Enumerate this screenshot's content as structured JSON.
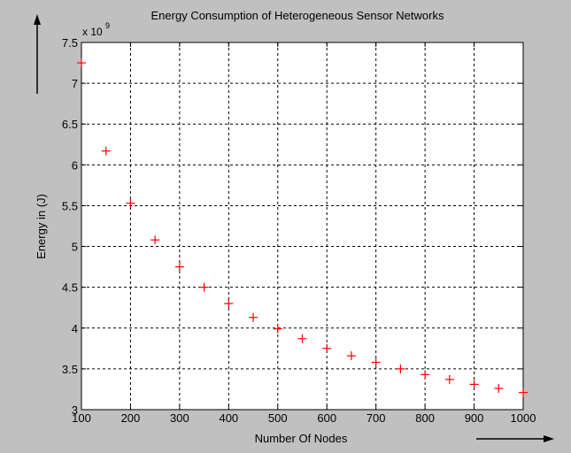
{
  "chart_data": {
    "type": "scatter",
    "title": "Energy Consumption of Heterogeneous Sensor Networks",
    "xlabel": "Number Of Nodes",
    "ylabel": "Energy in (J)",
    "y_multiplier_base": "x 10",
    "y_multiplier_exp": "9",
    "xlim": [
      100,
      1000
    ],
    "ylim": [
      3,
      7.5
    ],
    "x_ticks": [
      100,
      200,
      300,
      400,
      500,
      600,
      700,
      800,
      900,
      1000
    ],
    "y_ticks": [
      3,
      3.5,
      4,
      4.5,
      5,
      5.5,
      6,
      6.5,
      7,
      7.5
    ],
    "x_tick_labels": [
      "100",
      "200",
      "300",
      "400",
      "500",
      "600",
      "700",
      "800",
      "900",
      "1000"
    ],
    "y_tick_labels": [
      "3",
      "3.5",
      "4",
      "4.5",
      "5",
      "5.5",
      "6",
      "6.5",
      "7",
      "7.5"
    ],
    "grid": true,
    "marker": "+",
    "marker_color": "#ff0000",
    "background_color": "#c0c0c0",
    "axes_color": "#ffffff",
    "x": [
      100,
      150,
      200,
      250,
      300,
      350,
      400,
      450,
      500,
      550,
      600,
      650,
      700,
      750,
      800,
      850,
      900,
      950,
      1000
    ],
    "y": [
      7.25,
      6.17,
      5.53,
      5.08,
      4.75,
      4.5,
      4.3,
      4.13,
      3.99,
      3.87,
      3.75,
      3.66,
      3.58,
      3.5,
      3.43,
      3.37,
      3.31,
      3.26,
      3.21
    ]
  }
}
